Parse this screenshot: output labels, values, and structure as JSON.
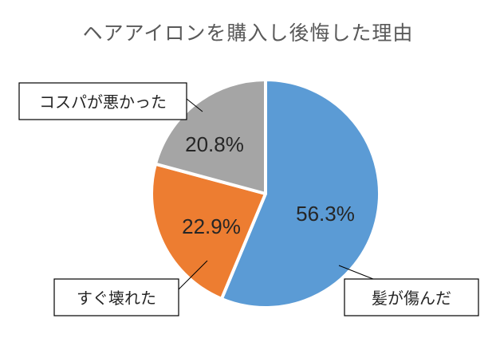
{
  "chart_data": {
    "type": "pie",
    "title": "ヘアアイロンを購入し後悔した理由",
    "categories": [
      "髪が傷んだ",
      "すぐ壊れた",
      "コスパが悪かった"
    ],
    "values": [
      56.3,
      22.9,
      20.8
    ],
    "value_labels": [
      "56.3%",
      "22.9%",
      "20.8%"
    ],
    "colors": [
      "#5B9BD5",
      "#ED7D31",
      "#A5A5A5"
    ],
    "start_angle_deg": 0,
    "direction": "clockwise",
    "legend": "none",
    "callouts": "boxed-labels-with-leader-lines"
  }
}
